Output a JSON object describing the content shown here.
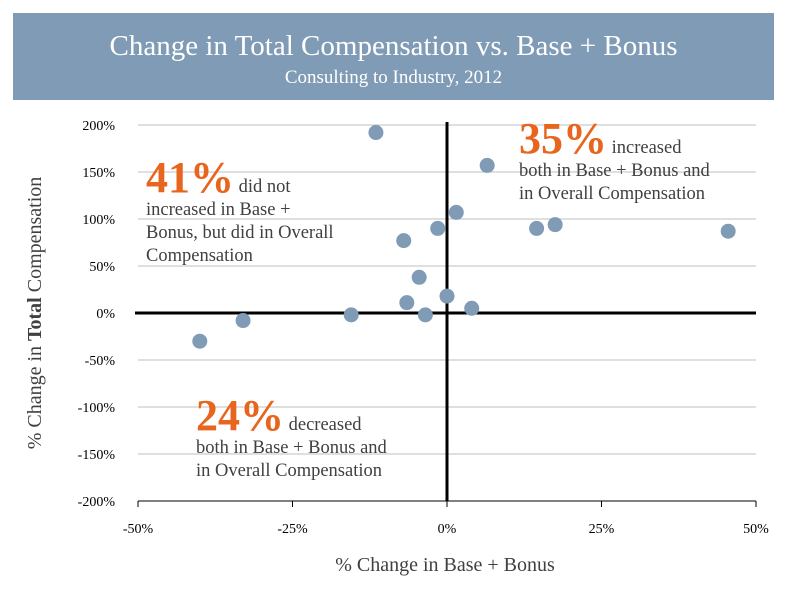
{
  "title": "Change in Total Compensation vs. Base + Bonus",
  "subtitle": "Consulting to Industry, 2012",
  "callouts": {
    "upper_left": {
      "pct": "41%",
      "text1": " did not",
      "text2": "increased in Base +",
      "text3": "Bonus, but did in Overall",
      "text4": "Compensation"
    },
    "upper_right": {
      "pct": "35%",
      "text1": " increased",
      "text2": "both in Base + Bonus and",
      "text3": "in Overall Compensation"
    },
    "lower": {
      "pct": "24%",
      "text1": " decreased",
      "text2": "both in Base + Bonus and",
      "text3": "in Overall Compensation"
    }
  },
  "colors": {
    "header": "#7f9bb5",
    "point": "#7f9bb5",
    "accent": "#e8651e",
    "gridline": "#bfbfbf",
    "axis": "#000000"
  },
  "chart_data": {
    "type": "scatter",
    "xlabel": "% Change in Base + Bonus",
    "ylabel_prefix": "% Change in ",
    "ylabel_bold": "Total",
    "ylabel_suffix": " Compensation",
    "xlim": [
      -50,
      50
    ],
    "ylim": [
      -200,
      200
    ],
    "x_ticks": [
      -50,
      -25,
      0,
      25,
      50
    ],
    "x_tick_labels": [
      "-50%",
      "-25%",
      "0%",
      "25%",
      "50%"
    ],
    "y_ticks": [
      200,
      150,
      100,
      50,
      0,
      -50,
      -100,
      -150,
      -200
    ],
    "y_tick_labels": [
      "200%",
      "150%",
      "100%",
      "50%",
      "0%",
      "-50%",
      "-100%",
      "-150%",
      "-200%"
    ],
    "grid": "horizontal",
    "points": [
      {
        "x": -40,
        "y": -30
      },
      {
        "x": -33,
        "y": -8
      },
      {
        "x": -15.5,
        "y": -2
      },
      {
        "x": -11.5,
        "y": 192
      },
      {
        "x": -7,
        "y": 77
      },
      {
        "x": -6.5,
        "y": 11
      },
      {
        "x": -4.5,
        "y": 38
      },
      {
        "x": -3.5,
        "y": -2
      },
      {
        "x": -1.5,
        "y": 90
      },
      {
        "x": 0,
        "y": 18
      },
      {
        "x": 1.5,
        "y": 107
      },
      {
        "x": 4,
        "y": 5
      },
      {
        "x": 6.5,
        "y": 157
      },
      {
        "x": 14.5,
        "y": 90
      },
      {
        "x": 17.5,
        "y": 94
      },
      {
        "x": 45.5,
        "y": 87
      }
    ]
  }
}
